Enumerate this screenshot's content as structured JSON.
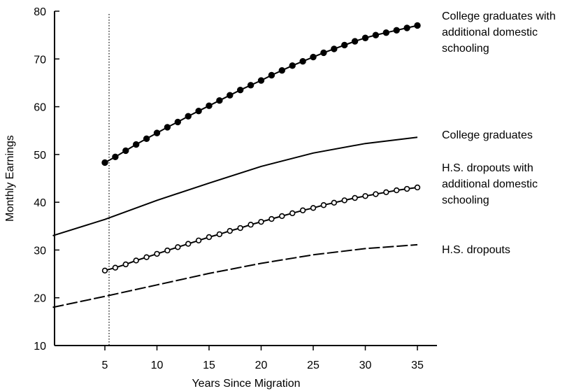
{
  "chart_data": {
    "type": "line",
    "title": "",
    "xlabel": "Years Since Migration",
    "ylabel": "Monthly Earnings",
    "xlim": [
      0,
      37
    ],
    "ylim": [
      10,
      80
    ],
    "x_ticks": [
      5,
      10,
      15,
      20,
      25,
      30,
      35
    ],
    "y_ticks": [
      10,
      20,
      30,
      40,
      50,
      60,
      70,
      80
    ],
    "grid": false,
    "reference_line": {
      "x": 5,
      "style": "dotted"
    },
    "series": [
      {
        "name": "College graduates with additional domestic schooling",
        "label_lines": [
          "College graduates with",
          "additional domestic",
          "schooling"
        ],
        "style": "solid",
        "marker": "filled-circle",
        "color": "#000000",
        "x": [
          5,
          6,
          7,
          8,
          9,
          10,
          11,
          12,
          13,
          14,
          15,
          16,
          17,
          18,
          19,
          20,
          21,
          22,
          23,
          24,
          25,
          26,
          27,
          28,
          29,
          30,
          31,
          32,
          33,
          34,
          35
        ],
        "values": [
          48.3,
          49.5,
          50.8,
          52.1,
          53.3,
          54.5,
          55.7,
          56.8,
          58.0,
          59.1,
          60.2,
          61.3,
          62.4,
          63.5,
          64.5,
          65.5,
          66.6,
          67.6,
          68.6,
          69.5,
          70.4,
          71.3,
          72.1,
          72.9,
          73.7,
          74.4,
          75.0,
          75.5,
          76.0,
          76.5,
          77.0
        ]
      },
      {
        "name": "College graduates",
        "label_lines": [
          "College graduates"
        ],
        "style": "solid",
        "marker": "none",
        "color": "#000000",
        "x": [
          0,
          5,
          10,
          15,
          20,
          25,
          30,
          35
        ],
        "values": [
          33.0,
          36.4,
          40.4,
          44.0,
          47.5,
          50.3,
          52.3,
          53.6
        ]
      },
      {
        "name": "H.S. dropouts with additional domestic schooling",
        "label_lines": [
          "H.S. dropouts with",
          "additional domestic",
          "schooling"
        ],
        "style": "solid",
        "marker": "open-circle",
        "color": "#000000",
        "x": [
          5,
          6,
          7,
          8,
          9,
          10,
          11,
          12,
          13,
          14,
          15,
          16,
          17,
          18,
          19,
          20,
          21,
          22,
          23,
          24,
          25,
          26,
          27,
          28,
          29,
          30,
          31,
          32,
          33,
          34,
          35
        ],
        "values": [
          25.7,
          26.3,
          27.0,
          27.8,
          28.5,
          29.2,
          29.9,
          30.6,
          31.3,
          32.0,
          32.7,
          33.3,
          34.0,
          34.6,
          35.3,
          35.9,
          36.5,
          37.1,
          37.7,
          38.3,
          38.8,
          39.4,
          39.9,
          40.4,
          40.9,
          41.3,
          41.7,
          42.1,
          42.5,
          42.8,
          43.1
        ]
      },
      {
        "name": "H.S. dropouts",
        "label_lines": [
          "H.S. dropouts"
        ],
        "style": "dashed",
        "marker": "none",
        "color": "#000000",
        "x": [
          0,
          5,
          10,
          15,
          20,
          25,
          30,
          35
        ],
        "values": [
          18.0,
          20.3,
          22.7,
          25.1,
          27.2,
          29.0,
          30.3,
          31.1
        ]
      }
    ]
  }
}
